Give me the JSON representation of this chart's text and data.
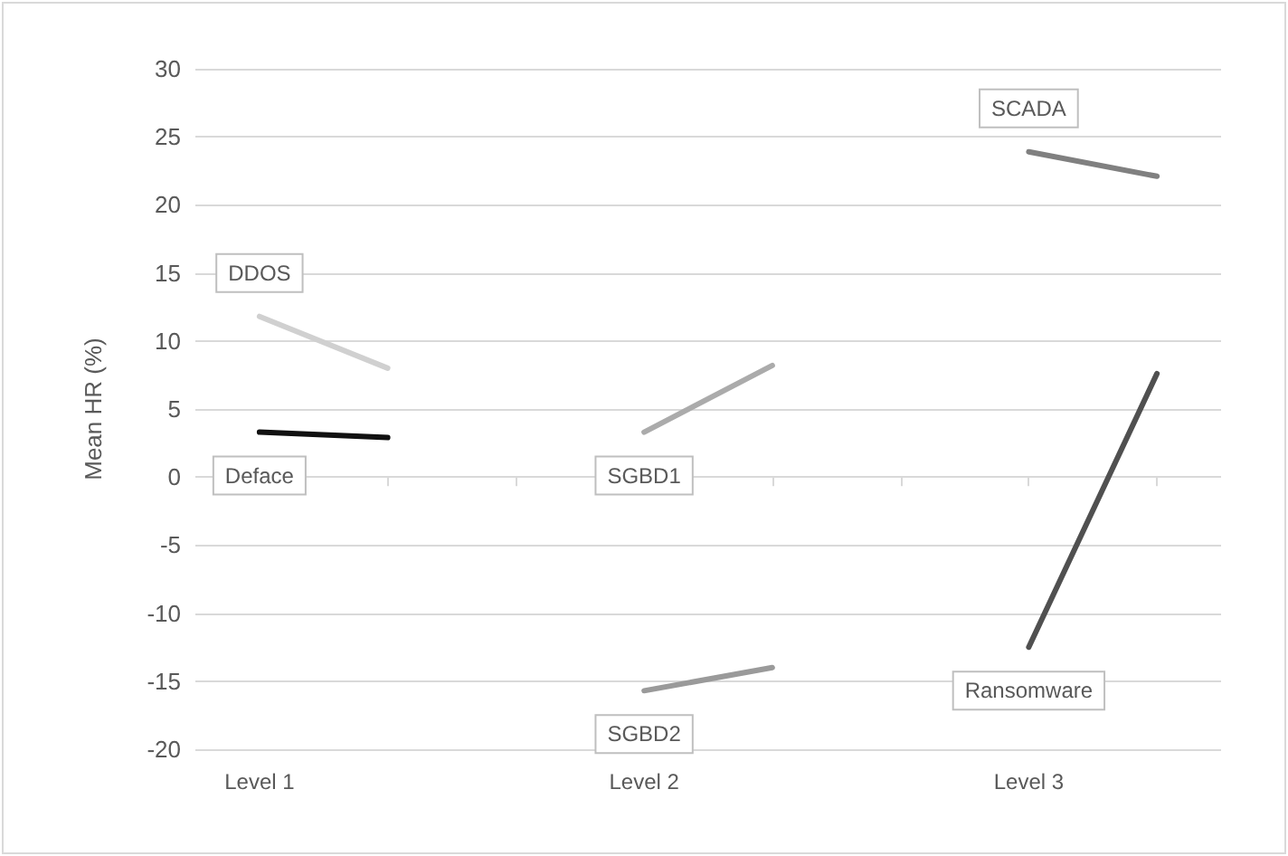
{
  "chart_data": {
    "type": "line",
    "ylabel": "Mean HR (%)",
    "categories": [
      "Level 1",
      null,
      null,
      "Level 2",
      null,
      null,
      "Level 3",
      null
    ],
    "series": [
      {
        "name": "DDOS",
        "color": "#d0d0d0",
        "values": [
          11.8,
          8.0,
          null,
          null,
          null,
          null,
          null,
          null
        ]
      },
      {
        "name": "Deface",
        "color": "#111111",
        "values": [
          3.3,
          2.9,
          null,
          null,
          null,
          null,
          null,
          null
        ]
      },
      {
        "name": "SGBD1",
        "color": "#ababab",
        "values": [
          null,
          null,
          null,
          3.3,
          8.2,
          null,
          null,
          null
        ]
      },
      {
        "name": "SGBD2",
        "color": "#9a9a9a",
        "values": [
          null,
          null,
          null,
          -15.7,
          -14.0,
          null,
          null,
          null
        ]
      },
      {
        "name": "SCADA",
        "color": "#808080",
        "values": [
          null,
          null,
          null,
          null,
          null,
          null,
          23.9,
          22.1
        ]
      },
      {
        "name": "Ransomware",
        "color": "#505050",
        "values": [
          null,
          null,
          null,
          null,
          null,
          null,
          -12.5,
          7.6
        ]
      }
    ],
    "ylim": [
      -20,
      30
    ],
    "yticks": [
      -20,
      -15,
      -10,
      -5,
      0,
      5,
      10,
      15,
      20,
      25,
      30
    ],
    "grid": "y",
    "legend": false,
    "marker": "none",
    "line_style": "solid"
  }
}
